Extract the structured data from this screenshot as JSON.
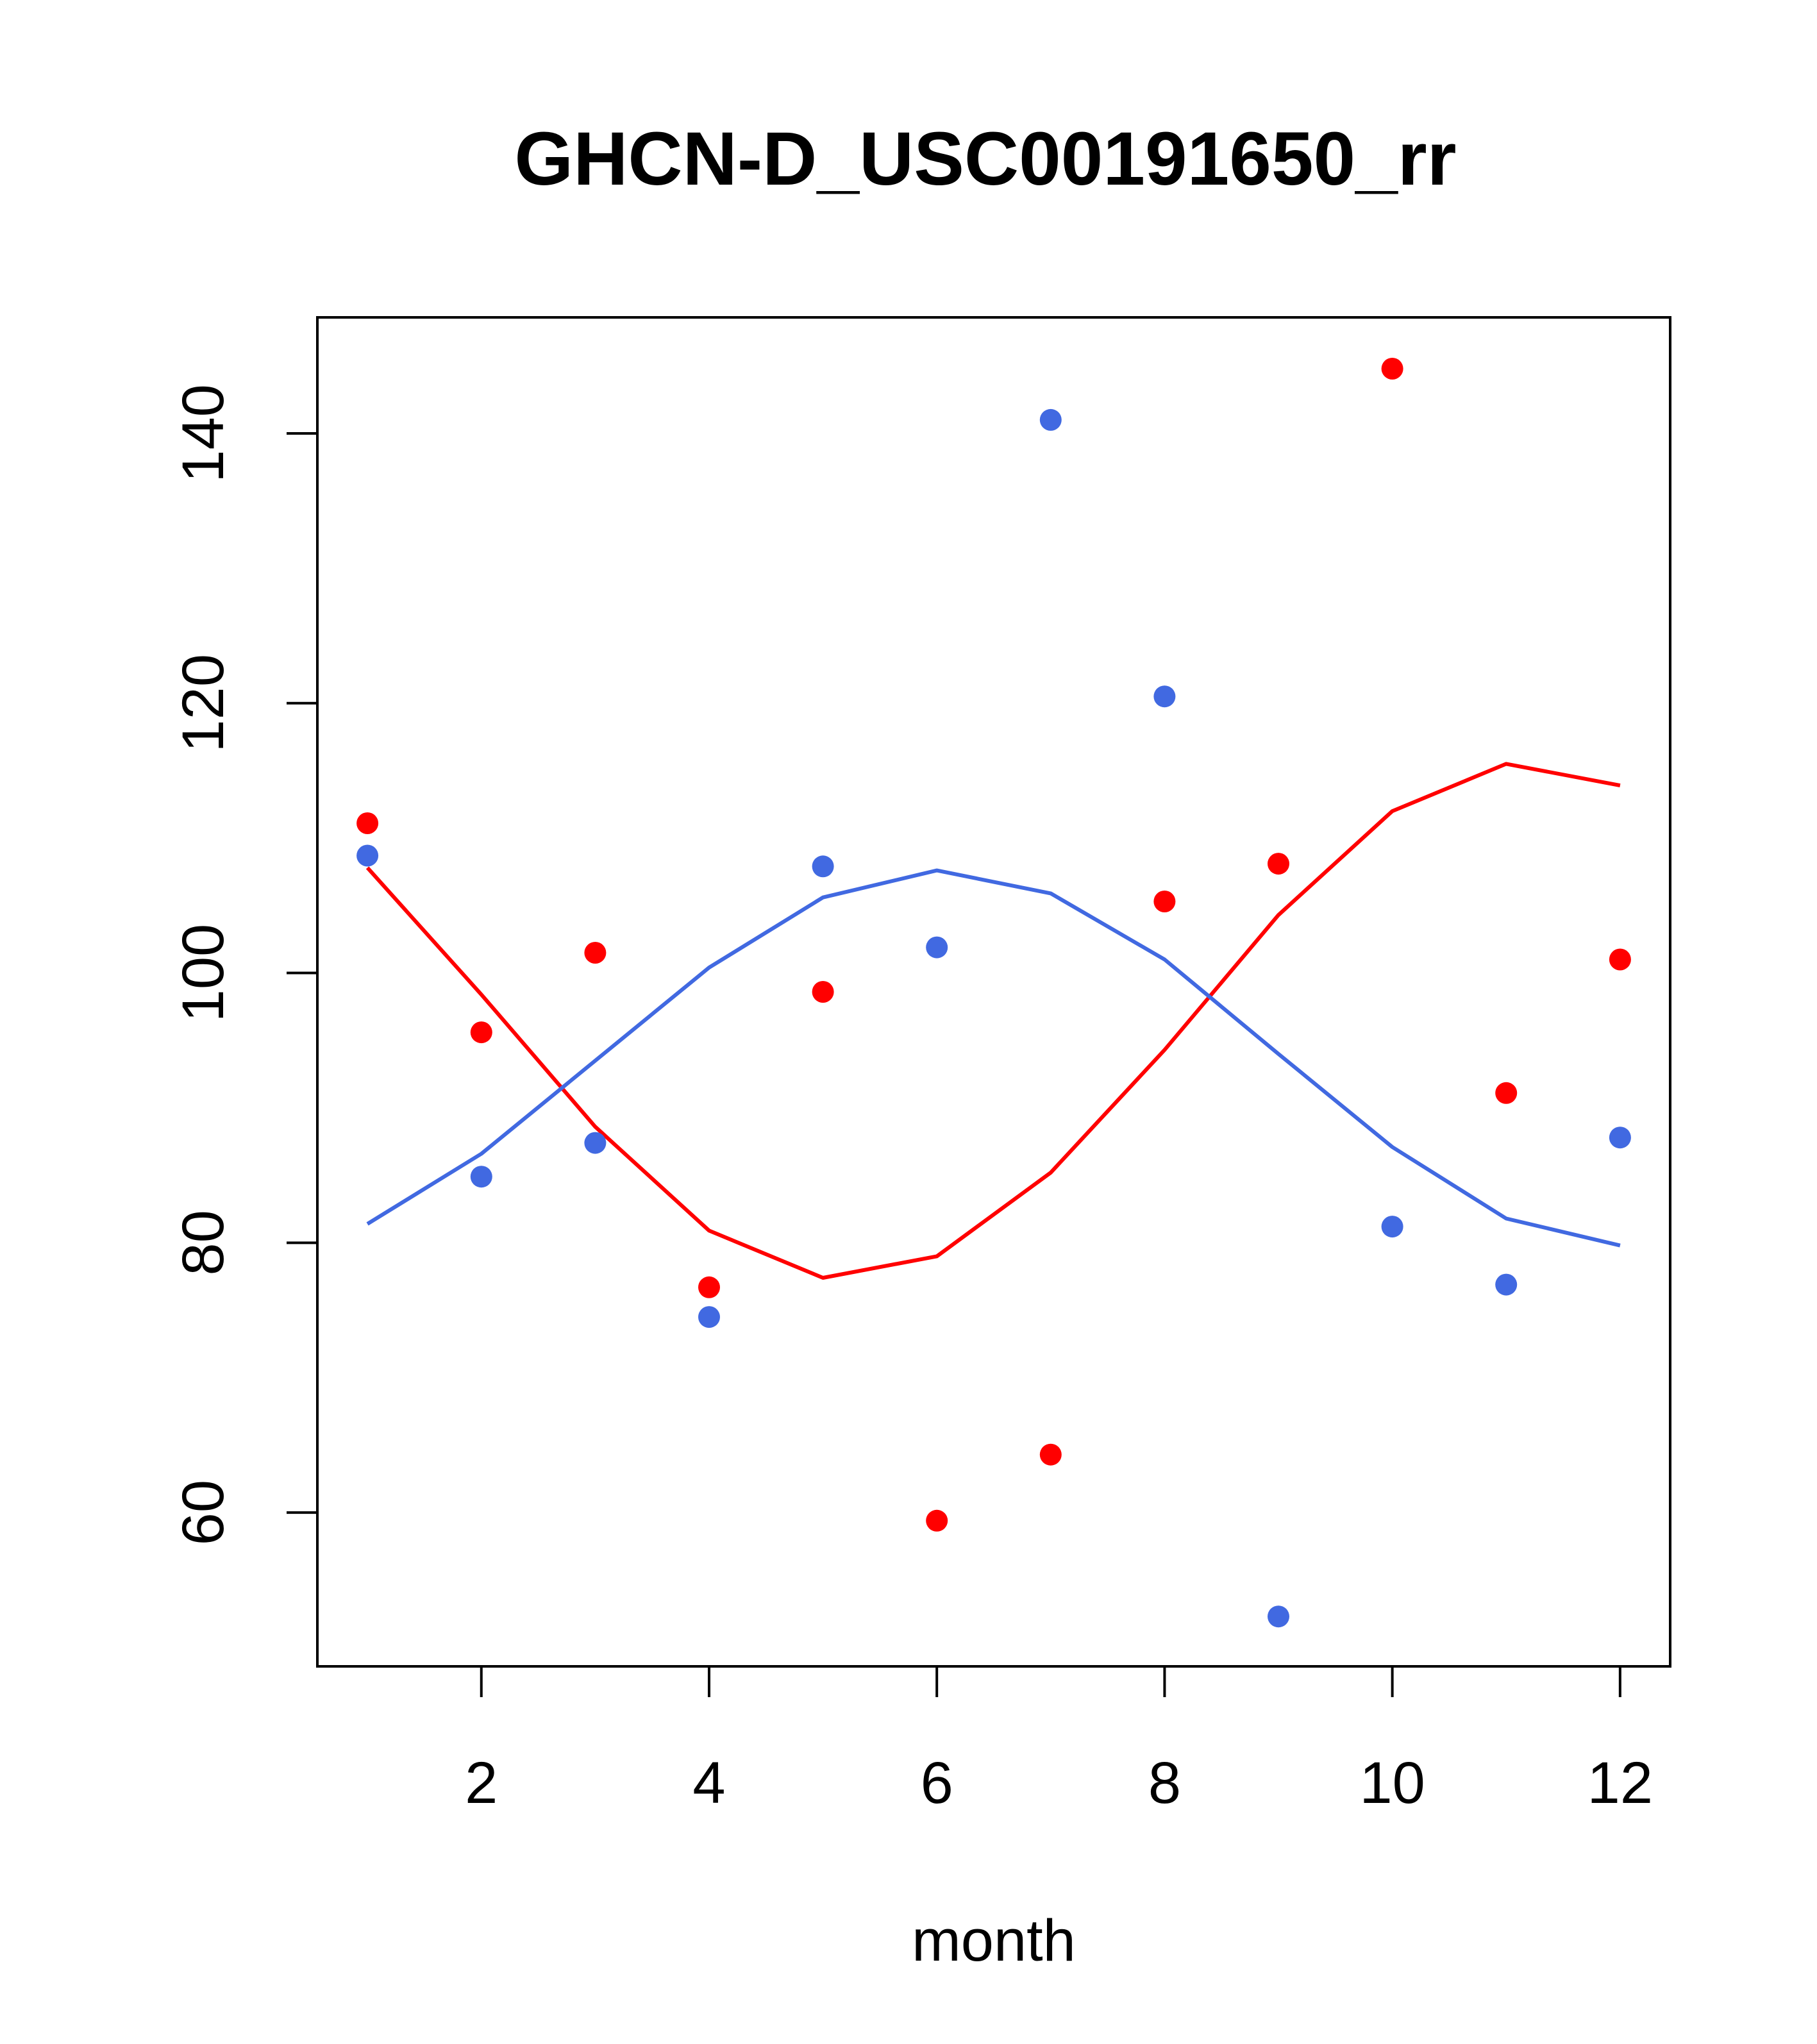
{
  "chart_data": {
    "type": "scatter",
    "title": "GHCN-D_USC00191650_rr",
    "xlabel": "month",
    "ylabel": "",
    "xlim": [
      0.56,
      12.44
    ],
    "ylim": [
      48.6,
      148.6
    ],
    "x_ticks": [
      "2",
      "4",
      "6",
      "8",
      "10",
      "12"
    ],
    "y_ticks": [
      "60",
      "80",
      "100",
      "120",
      "140"
    ],
    "grid": false,
    "colors": {
      "red": "#ff0000",
      "blue": "#4169e1",
      "axis": "#000000"
    },
    "series": [
      {
        "color": "#ff0000",
        "points": {
          "x": [
            1,
            2,
            3,
            4,
            5,
            6,
            7,
            8,
            9,
            10,
            11,
            12
          ],
          "y": [
            111.1,
            95.6,
            101.5,
            76.7,
            98.6,
            59.4,
            64.3,
            105.3,
            108.1,
            144.8,
            91.1,
            101.0
          ]
        },
        "line": {
          "x": [
            1,
            2,
            3,
            4,
            5,
            6,
            7,
            8,
            9,
            10,
            11,
            12
          ],
          "y": [
            107.8,
            98.4,
            88.6,
            80.9,
            77.4,
            79.0,
            85.2,
            94.3,
            104.3,
            112.0,
            115.5,
            113.9
          ]
        }
      },
      {
        "color": "#4169e1",
        "points": {
          "x": [
            1,
            2,
            3,
            4,
            5,
            6,
            7,
            8,
            9,
            10,
            11,
            12
          ],
          "y": [
            108.7,
            84.9,
            87.4,
            74.5,
            107.9,
            101.9,
            141.0,
            120.5,
            52.3,
            81.2,
            76.9,
            87.8
          ]
        },
        "line": {
          "x": [
            1,
            2,
            3,
            4,
            5,
            6,
            7,
            8,
            9,
            10,
            11,
            12
          ],
          "y": [
            81.4,
            86.6,
            93.5,
            100.4,
            105.6,
            107.6,
            105.9,
            101.0,
            94.0,
            87.1,
            81.8,
            79.8
          ]
        }
      }
    ]
  }
}
